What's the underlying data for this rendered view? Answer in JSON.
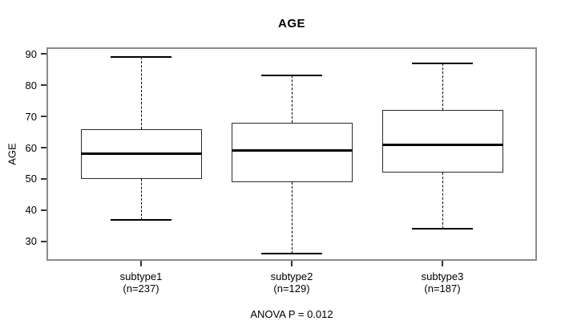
{
  "chart_data": {
    "type": "boxplot",
    "title": "AGE",
    "ylabel": "AGE",
    "xlabel": "",
    "annotation": "ANOVA P = 0.012",
    "grid": false,
    "legend": null,
    "ylim": [
      23.8,
      92.1
    ],
    "yticks": [
      30,
      40,
      50,
      60,
      70,
      80,
      90
    ],
    "categories": [
      "subtype1",
      "subtype2",
      "subtype3"
    ],
    "category_sublabels": [
      "(n=237)",
      "(n=129)",
      "(n=187)"
    ],
    "series": [
      {
        "name": "subtype1",
        "n": 237,
        "whisker_low": 37,
        "q1": 50,
        "median": 58,
        "q3": 66,
        "whisker_high": 89
      },
      {
        "name": "subtype2",
        "n": 129,
        "whisker_low": 26,
        "q1": 49,
        "median": 59,
        "q3": 68,
        "whisker_high": 83
      },
      {
        "name": "subtype3",
        "n": 187,
        "whisker_low": 34,
        "q1": 52,
        "median": 61,
        "q3": 72,
        "whisker_high": 87
      }
    ],
    "colors": {
      "background": "#ffffff",
      "frame": "#8a8a8a",
      "box_border": "#2b2b2b",
      "median": "#000000",
      "whisker": "#000000",
      "tick": "#333333",
      "text": "#000000"
    }
  }
}
